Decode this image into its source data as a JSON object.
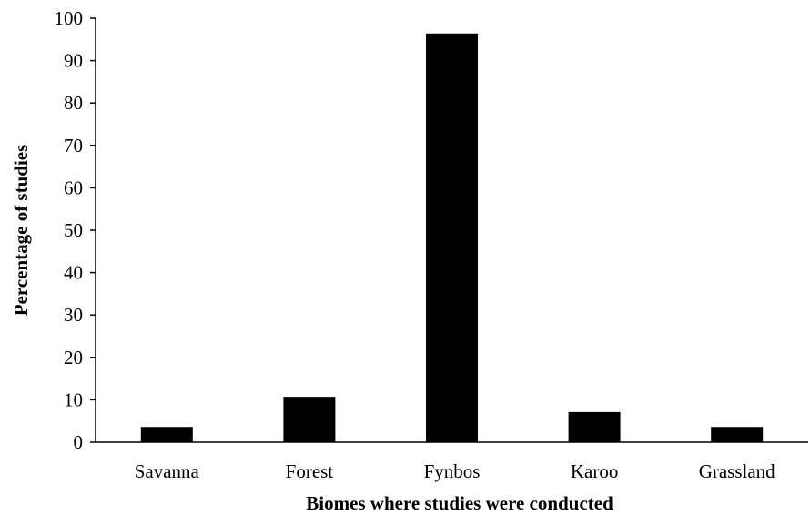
{
  "chart_data": {
    "type": "bar",
    "title": "",
    "xlabel": "Biomes where studies were conducted",
    "ylabel": "Percentage of studies",
    "categories": [
      "Savanna",
      "Forest",
      "Fynbos",
      "Karoo",
      "Grassland"
    ],
    "values": [
      3.6,
      10.7,
      96.4,
      7.1,
      3.6
    ],
    "ylim": [
      0,
      100
    ],
    "yticks": [
      "0",
      "10",
      "20",
      "30",
      "40",
      "50",
      "60",
      "70",
      "80",
      "90",
      "100"
    ],
    "grid": false,
    "legend": "none",
    "bar_color": "#000000"
  }
}
